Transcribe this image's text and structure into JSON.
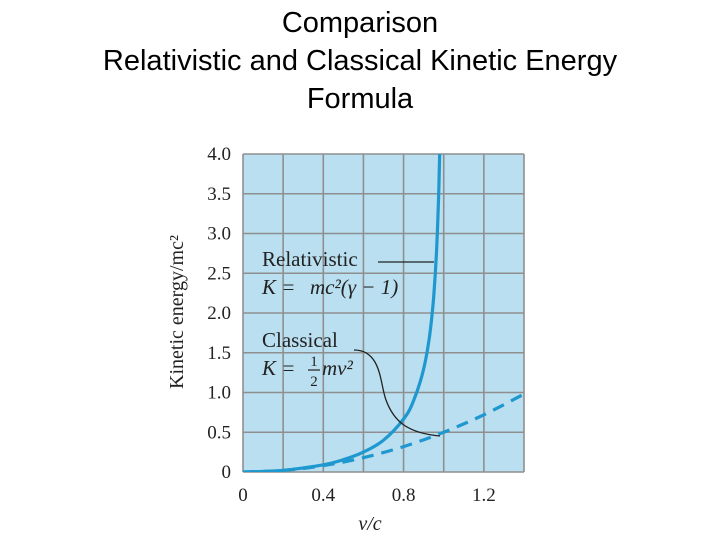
{
  "slide": {
    "title_lines": [
      "Comparison",
      "Relativistic and Classical Kinetic Energy",
      "Formula"
    ]
  },
  "chart_data": {
    "type": "line",
    "xlabel": "v/c",
    "ylabel": "Kinetic energy/mc²",
    "xlim": [
      0,
      1.4
    ],
    "ylim": [
      0,
      4.0
    ],
    "x_ticks": [
      "0",
      "0.4",
      "0.8",
      "1.2"
    ],
    "y_ticks": [
      "0",
      "0.5",
      "1.0",
      "1.5",
      "2.0",
      "2.5",
      "3.0",
      "3.5",
      "4.0"
    ],
    "grid": true,
    "background_color": "#b9dff0",
    "series": [
      {
        "name": "Relativistic",
        "formula": "K = mc²(γ − 1)",
        "style": "solid",
        "color": "#1f97cf",
        "x": [
          0,
          0.2,
          0.4,
          0.5,
          0.6,
          0.7,
          0.8,
          0.85,
          0.9,
          0.93,
          0.95,
          0.965,
          0.975,
          0.98
        ],
        "y": [
          0,
          0.021,
          0.091,
          0.155,
          0.25,
          0.4,
          0.667,
          0.898,
          1.294,
          1.721,
          2.203,
          2.817,
          3.5,
          4.025
        ]
      },
      {
        "name": "Classical",
        "formula": "K = ½mv²",
        "style": "dashed",
        "color": "#1f97cf",
        "x": [
          0,
          0.2,
          0.4,
          0.6,
          0.8,
          1.0,
          1.2,
          1.4
        ],
        "y": [
          0,
          0.02,
          0.08,
          0.18,
          0.32,
          0.5,
          0.72,
          0.98
        ]
      }
    ],
    "annotations": {
      "relativistic_label": "Relativistic",
      "relativistic_formula_lhs": "K =",
      "relativistic_formula_rhs": "mc²(γ − 1)",
      "classical_label": "Classical",
      "classical_formula_lhs": "K =",
      "classical_fraction_num": "1",
      "classical_fraction_den": "2",
      "classical_formula_rhs": "mv²"
    }
  }
}
